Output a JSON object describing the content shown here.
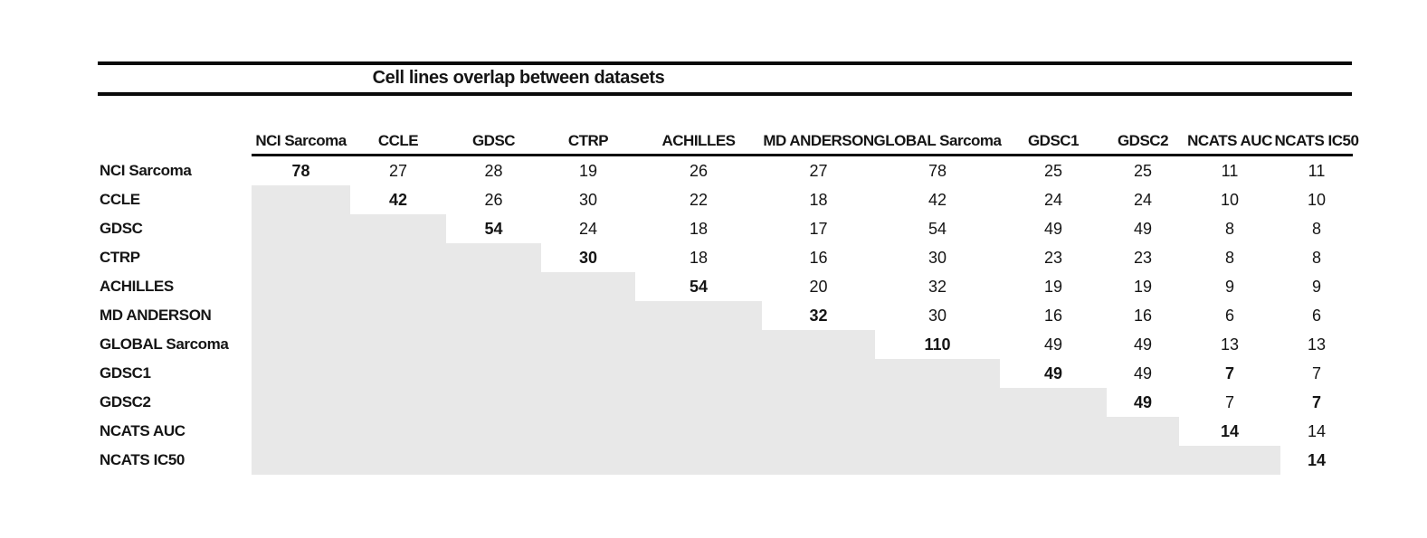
{
  "title": "Cell lines overlap between datasets",
  "colors": {
    "shaded_cell": "#e8e8e8",
    "rule": "#0a0a0a",
    "text": "#151515"
  },
  "matrix": {
    "columns": [
      "NCI Sarcoma",
      "CCLE",
      "GDSC",
      "CTRP",
      "ACHILLES",
      "MD ANDERSON",
      "GLOBAL Sarcoma",
      "GDSC1",
      "GDSC2",
      "NCATS AUC",
      "NCATS IC50"
    ],
    "rows": [
      {
        "label": "NCI Sarcoma",
        "values": [
          "78",
          "27",
          "28",
          "19",
          "26",
          "27",
          "78",
          "25",
          "25",
          "11",
          "11"
        ],
        "bold_cols": [
          0
        ]
      },
      {
        "label": "CCLE",
        "values": [
          null,
          "42",
          "26",
          "30",
          "22",
          "18",
          "42",
          "24",
          "24",
          "10",
          "10"
        ],
        "bold_cols": [
          1
        ]
      },
      {
        "label": "GDSC",
        "values": [
          null,
          null,
          "54",
          "24",
          "18",
          "17",
          "54",
          "49",
          "49",
          "8",
          "8"
        ],
        "bold_cols": [
          2
        ]
      },
      {
        "label": "CTRP",
        "values": [
          null,
          null,
          null,
          "30",
          "18",
          "16",
          "30",
          "23",
          "23",
          "8",
          "8"
        ],
        "bold_cols": [
          3
        ]
      },
      {
        "label": "ACHILLES",
        "values": [
          null,
          null,
          null,
          null,
          "54",
          "20",
          "32",
          "19",
          "19",
          "9",
          "9"
        ],
        "bold_cols": [
          4
        ]
      },
      {
        "label": "MD ANDERSON",
        "values": [
          null,
          null,
          null,
          null,
          null,
          "32",
          "30",
          "16",
          "16",
          "6",
          "6"
        ],
        "bold_cols": [
          5
        ]
      },
      {
        "label": "GLOBAL Sarcoma",
        "values": [
          null,
          null,
          null,
          null,
          null,
          null,
          "110",
          "49",
          "49",
          "13",
          "13"
        ],
        "bold_cols": [
          6
        ]
      },
      {
        "label": "GDSC1",
        "values": [
          null,
          null,
          null,
          null,
          null,
          null,
          null,
          "49",
          "49",
          "7",
          "7"
        ],
        "bold_cols": [
          7,
          9
        ]
      },
      {
        "label": "GDSC2",
        "values": [
          null,
          null,
          null,
          null,
          null,
          null,
          null,
          null,
          "49",
          "7",
          "7"
        ],
        "bold_cols": [
          8,
          10
        ]
      },
      {
        "label": "NCATS AUC",
        "values": [
          null,
          null,
          null,
          null,
          null,
          null,
          null,
          null,
          null,
          "14",
          "14"
        ],
        "bold_cols": [
          9
        ]
      },
      {
        "label": "NCATS IC50",
        "values": [
          null,
          null,
          null,
          null,
          null,
          null,
          null,
          null,
          null,
          null,
          "14"
        ],
        "bold_cols": [
          10
        ]
      }
    ]
  }
}
